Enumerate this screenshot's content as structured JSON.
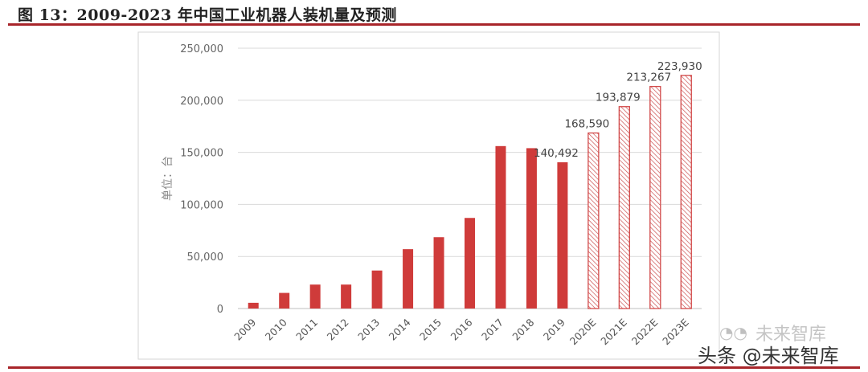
{
  "title": "图 13：2009-2023 年中国工业机器人装机量及预测",
  "watermark": {
    "faint": "未来智库",
    "main": "头条 @未来智库",
    "icon": "wechat-icon"
  },
  "chart_data": {
    "type": "bar",
    "title": "",
    "xlabel": "",
    "ylabel": "单位：台",
    "ylim": [
      0,
      250000
    ],
    "yticks": [
      0,
      50000,
      100000,
      150000,
      200000,
      250000
    ],
    "ytick_labels": [
      "0",
      "50,000",
      "100,000",
      "150,000",
      "200,000",
      "250,000"
    ],
    "grid": true,
    "categories": [
      "2009",
      "2010",
      "2011",
      "2012",
      "2013",
      "2014",
      "2015",
      "2016",
      "2017",
      "2018",
      "2019",
      "2020E",
      "2021E",
      "2022E",
      "2023E"
    ],
    "values": [
      5500,
      15000,
      23000,
      23000,
      36500,
      57000,
      68500,
      87000,
      156000,
      154000,
      140492,
      168590,
      193879,
      213267,
      223930
    ],
    "estimated": [
      false,
      false,
      false,
      false,
      false,
      false,
      false,
      false,
      false,
      false,
      false,
      true,
      true,
      true,
      true
    ],
    "data_labels": [
      "",
      "",
      "",
      "",
      "",
      "",
      "",
      "",
      "",
      "",
      "140,492",
      "168,590",
      "193,879",
      "213,267",
      "223,930"
    ],
    "colors": {
      "actual": "#cf3b3a",
      "forecast_outline": "#d24a4a",
      "forecast_hatch": "#c44",
      "grid": "#d9d9d9"
    }
  }
}
